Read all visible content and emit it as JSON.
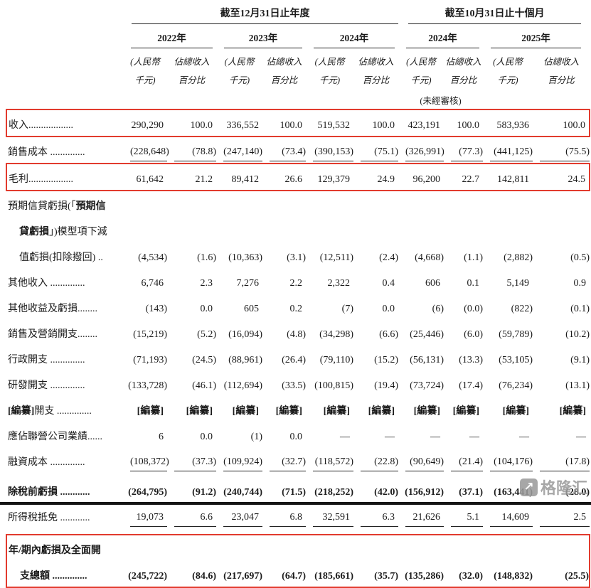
{
  "colors": {
    "accent_red": "#e23b2e",
    "rule_dark": "#222222",
    "bottom_bar": "#141414",
    "watermark_grey": "#9b9b9b"
  },
  "header": {
    "group_annual": {
      "title": "截至12月31日止年度",
      "years": [
        "2022年",
        "2023年",
        "2024年"
      ]
    },
    "group_ten_months": {
      "title": "截至10月31日止十個月",
      "years": [
        "2024年",
        "2025年"
      ]
    },
    "sub_money_line1": "(人民幣",
    "sub_money_line2": "千元)",
    "sub_pct_line1": "佔總收入",
    "sub_pct_line2": "百分比",
    "unaudited_note": "(未經審核)"
  },
  "table": {
    "rows": [
      {
        "name": "revenue",
        "box": true,
        "bold_values": false,
        "rule": false,
        "lines": [
          {
            "indent": false,
            "segs": [
              {
                "t": "收入..................",
                "b": false
              }
            ]
          }
        ],
        "values": [
          "290,290",
          "100.0",
          "336,552",
          "100.0",
          "519,532",
          "100.0",
          "423,191",
          "100.0",
          "583,936",
          "100.0"
        ]
      },
      {
        "name": "cost-of-sales",
        "box": false,
        "bold_values": false,
        "rule": true,
        "lines": [
          {
            "indent": false,
            "segs": [
              {
                "t": "銷售成本 ..............",
                "b": false
              }
            ]
          }
        ],
        "values": [
          "(228,648)",
          "(78.8)",
          "(247,140)",
          "(73.4)",
          "(390,153)",
          "(75.1)",
          "(326,991)",
          "(77.3)",
          "(441,125)",
          "(75.5)"
        ]
      },
      {
        "name": "gross-profit",
        "box": true,
        "bold_values": false,
        "rule": false,
        "lines": [
          {
            "indent": false,
            "segs": [
              {
                "t": "毛利..................",
                "b": false
              }
            ]
          }
        ],
        "values": [
          "61,642",
          "21.2",
          "89,412",
          "26.6",
          "129,379",
          "24.9",
          "96,200",
          "22.7",
          "142,811",
          "24.5"
        ]
      },
      {
        "name": "ecl-impairment",
        "box": false,
        "bold_values": false,
        "rule": false,
        "lines": [
          {
            "indent": false,
            "segs": [
              {
                "t": "預期信貸虧損(「",
                "b": false
              },
              {
                "t": "預期信",
                "b": true
              }
            ]
          },
          {
            "indent": true,
            "segs": [
              {
                "t": "貸虧損",
                "b": true
              },
              {
                "t": "」)模型項下減",
                "b": false
              }
            ]
          },
          {
            "indent": true,
            "segs": [
              {
                "t": "值虧損(扣除撥回) ..",
                "b": false
              }
            ]
          }
        ],
        "values": [
          "(4,534)",
          "(1.6)",
          "(10,363)",
          "(3.1)",
          "(12,511)",
          "(2.4)",
          "(4,668)",
          "(1.1)",
          "(2,882)",
          "(0.5)"
        ]
      },
      {
        "name": "other-income",
        "box": false,
        "bold_values": false,
        "rule": false,
        "lines": [
          {
            "indent": false,
            "segs": [
              {
                "t": "其他收入 ..............",
                "b": false
              }
            ]
          }
        ],
        "values": [
          "6,746",
          "2.3",
          "7,276",
          "2.2",
          "2,322",
          "0.4",
          "606",
          "0.1",
          "5,149",
          "0.9"
        ]
      },
      {
        "name": "other-gains-and-losses",
        "box": false,
        "bold_values": false,
        "rule": false,
        "lines": [
          {
            "indent": false,
            "segs": [
              {
                "t": "其他收益及虧損........",
                "b": false
              }
            ]
          }
        ],
        "values": [
          "(143)",
          "0.0",
          "605",
          "0.2",
          "(7)",
          "0.0",
          "(6)",
          "(0.0)",
          "(822)",
          "(0.1)"
        ]
      },
      {
        "name": "selling-marketing-expenses",
        "box": false,
        "bold_values": false,
        "rule": false,
        "lines": [
          {
            "indent": false,
            "segs": [
              {
                "t": "銷售及營銷開支........",
                "b": false
              }
            ]
          }
        ],
        "values": [
          "(15,219)",
          "(5.2)",
          "(16,094)",
          "(4.8)",
          "(34,298)",
          "(6.6)",
          "(25,446)",
          "(6.0)",
          "(59,789)",
          "(10.2)"
        ]
      },
      {
        "name": "admin-expenses",
        "box": false,
        "bold_values": false,
        "rule": false,
        "lines": [
          {
            "indent": false,
            "segs": [
              {
                "t": "行政開支 ..............",
                "b": false
              }
            ]
          }
        ],
        "values": [
          "(71,193)",
          "(24.5)",
          "(88,961)",
          "(26.4)",
          "(79,110)",
          "(15.2)",
          "(56,131)",
          "(13.3)",
          "(53,105)",
          "(9.1)"
        ]
      },
      {
        "name": "rd-expenses",
        "box": false,
        "bold_values": false,
        "rule": false,
        "lines": [
          {
            "indent": false,
            "segs": [
              {
                "t": "研發開支 ..............",
                "b": false
              }
            ]
          }
        ],
        "values": [
          "(133,728)",
          "(46.1)",
          "(112,694)",
          "(33.5)",
          "(100,815)",
          "(19.4)",
          "(73,724)",
          "(17.4)",
          "(76,234)",
          "(13.1)"
        ]
      },
      {
        "name": "redacted-expenses",
        "box": false,
        "bold_values": true,
        "rule": false,
        "lines": [
          {
            "indent": false,
            "segs": [
              {
                "t": "[編纂]",
                "b": true
              },
              {
                "t": "開支 ..............",
                "b": false
              }
            ]
          }
        ],
        "values": [
          "[編纂]",
          "[編纂]",
          "[編纂]",
          "[編纂]",
          "[編纂]",
          "[編纂]",
          "[編纂]",
          "[編纂]",
          "[編纂]",
          "[編纂]"
        ]
      },
      {
        "name": "share-of-associates",
        "box": false,
        "bold_values": false,
        "rule": false,
        "lines": [
          {
            "indent": false,
            "segs": [
              {
                "t": "應佔聯營公司業績......",
                "b": false
              }
            ]
          }
        ],
        "values": [
          "6",
          "0.0",
          "(1)",
          "0.0",
          "—",
          "—",
          "—",
          "—",
          "—",
          "—"
        ]
      },
      {
        "name": "finance-costs",
        "box": false,
        "bold_values": false,
        "rule": true,
        "lines": [
          {
            "indent": false,
            "segs": [
              {
                "t": "融資成本 ..............",
                "b": false
              }
            ]
          }
        ],
        "values": [
          "(108,372)",
          "(37.3)",
          "(109,924)",
          "(32.7)",
          "(118,572)",
          "(22.8)",
          "(90,649)",
          "(21.4)",
          "(104,176)",
          "(17.8)"
        ]
      },
      {
        "name": "loss-before-tax",
        "box": false,
        "bold_values": true,
        "rule": false,
        "gap_before": 6,
        "lines": [
          {
            "indent": false,
            "segs": [
              {
                "t": "除稅前虧損 ............",
                "b": true
              }
            ]
          }
        ],
        "values": [
          "(264,795)",
          "(91.2)",
          "(240,744)",
          "(71.5)",
          "(218,252)",
          "(42.0)",
          "(156,912)",
          "(37.1)",
          "(163,441)",
          "(28.0)"
        ]
      },
      {
        "name": "income-tax-credit",
        "box": false,
        "bold_values": false,
        "rule": true,
        "lines": [
          {
            "indent": false,
            "segs": [
              {
                "t": "所得稅抵免 ............",
                "b": false
              }
            ]
          }
        ],
        "values": [
          "19,073",
          "6.6",
          "23,047",
          "6.8",
          "32,591",
          "6.3",
          "21,626",
          "5.1",
          "14,609",
          "2.5"
        ]
      },
      {
        "name": "total-loss-and-comprehensive-expense",
        "box": true,
        "bold_values": true,
        "rule": false,
        "gap_before": 8,
        "lines": [
          {
            "indent": false,
            "segs": [
              {
                "t": "年/期內虧損及全面開",
                "b": true
              }
            ]
          },
          {
            "indent": true,
            "segs": [
              {
                "t": "支總額 ..............",
                "b": true
              }
            ]
          }
        ],
        "values": [
          "(245,722)",
          "(84.6)",
          "(217,697)",
          "(64.7)",
          "(185,661)",
          "(35.7)",
          "(135,286)",
          "(32.0)",
          "(148,832)",
          "(25.5)"
        ]
      }
    ]
  },
  "watermark": {
    "text": "格隆汇",
    "icon": "↗"
  }
}
